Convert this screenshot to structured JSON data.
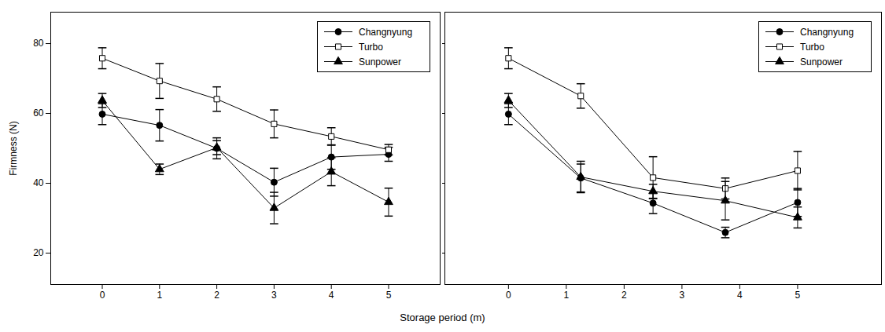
{
  "chart_data": [
    {
      "type": "line",
      "xlabel": "Storage period (m)",
      "ylabel": "Firmness (N)",
      "x": [
        0,
        1,
        2,
        3,
        4,
        5
      ],
      "xlim": [
        -0.9,
        5.9
      ],
      "xticks": [
        0,
        1,
        2,
        3,
        4,
        5
      ],
      "ylim": [
        11,
        89
      ],
      "yticks": [
        20,
        40,
        60,
        80
      ],
      "legend": "upper right",
      "series": [
        {
          "name": "Changnyung",
          "color": "#000000",
          "marker": "circle",
          "line_style": "solid",
          "values": [
            59.8,
            56.6,
            50.0,
            40.3,
            47.5,
            48.3
          ],
          "errors": [
            3.0,
            4.5,
            3.0,
            4.0,
            3.5,
            2.0
          ]
        },
        {
          "name": "Turbo",
          "color": "#000000",
          "marker": "square-open",
          "line_style": "solid",
          "values": [
            75.8,
            69.3,
            64.1,
            57.0,
            53.4,
            49.6
          ],
          "errors": [
            3.0,
            5.0,
            3.5,
            4.0,
            2.5,
            1.5
          ]
        },
        {
          "name": "Sunpower",
          "color": "#000000",
          "marker": "triangle",
          "line_style": "solid",
          "values": [
            63.7,
            44.0,
            50.2,
            32.9,
            43.3,
            34.6
          ],
          "errors": [
            2.0,
            1.5,
            2.0,
            4.5,
            4.0,
            4.0
          ]
        }
      ]
    },
    {
      "type": "line",
      "x": [
        0,
        1.25,
        2.5,
        3.75,
        5
      ],
      "xlim": [
        -1.1,
        6.45
      ],
      "xticks": [
        0,
        1,
        2,
        3,
        4,
        5
      ],
      "ylim": [
        11,
        89
      ],
      "yticks": [
        20,
        40,
        60,
        80
      ],
      "tick_labels": "x",
      "legend": "upper right",
      "series": [
        {
          "name": "Changnyung",
          "color": "#000000",
          "marker": "circle",
          "line_style": "solid",
          "values": [
            59.8,
            41.5,
            34.3,
            25.9,
            34.5
          ],
          "errors": [
            3.0,
            4.0,
            3.0,
            1.5,
            4.0
          ]
        },
        {
          "name": "Turbo",
          "color": "#000000",
          "marker": "square-open",
          "line_style": "solid",
          "values": [
            75.8,
            65.0,
            41.6,
            38.5,
            43.6
          ],
          "errors": [
            3.0,
            3.5,
            6.0,
            3.0,
            5.5
          ]
        },
        {
          "name": "Sunpower",
          "color": "#000000",
          "marker": "triangle",
          "line_style": "solid",
          "values": [
            63.7,
            41.8,
            37.7,
            35.0,
            30.2
          ],
          "errors": [
            2.0,
            4.5,
            2.0,
            5.5,
            3.0
          ]
        }
      ]
    }
  ]
}
